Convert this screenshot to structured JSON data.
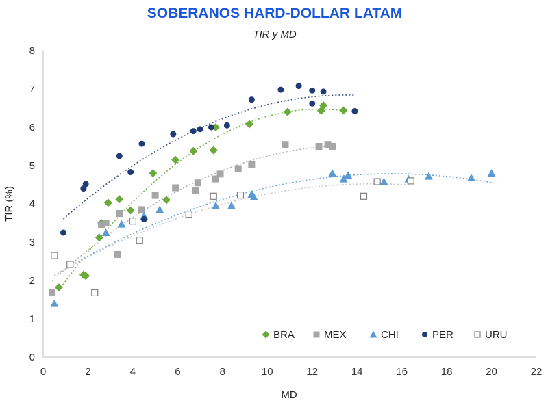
{
  "chart_data": {
    "type": "scatter",
    "title": "SOBERANOS HARD-DOLLAR LATAM",
    "subtitle": "TIR y MD",
    "xlabel": "MD",
    "ylabel": "TIR (%)",
    "xlim": [
      0,
      22
    ],
    "ylim": [
      0,
      8
    ],
    "xticks": [
      "0",
      "2",
      "4",
      "6",
      "8",
      "10",
      "12",
      "14",
      "16",
      "18",
      "20",
      "22"
    ],
    "yticks": [
      "0",
      "1",
      "2",
      "3",
      "4",
      "5",
      "6",
      "7",
      "8"
    ],
    "grid": false,
    "legend_position": "bottom-right",
    "trendlines": "dotted polynomial per series",
    "series": [
      {
        "name": "BRA",
        "marker": "diamond",
        "color": "#6aaa3a",
        "points": [
          [
            0.7,
            1.82
          ],
          [
            1.8,
            2.15
          ],
          [
            1.9,
            2.12
          ],
          [
            2.5,
            3.12
          ],
          [
            2.6,
            3.5
          ],
          [
            2.9,
            4.03
          ],
          [
            3.4,
            4.12
          ],
          [
            3.9,
            3.83
          ],
          [
            4.9,
            4.8
          ],
          [
            5.5,
            4.1
          ],
          [
            5.9,
            5.15
          ],
          [
            6.7,
            5.38
          ],
          [
            7.6,
            5.4
          ],
          [
            7.7,
            6.0
          ],
          [
            9.2,
            6.08
          ],
          [
            10.9,
            6.4
          ],
          [
            12.4,
            6.43
          ],
          [
            12.5,
            6.57
          ],
          [
            13.4,
            6.44
          ]
        ]
      },
      {
        "name": "MEX",
        "marker": "square",
        "color": "#a6a6a6",
        "points": [
          [
            0.4,
            1.68
          ],
          [
            2.6,
            3.45
          ],
          [
            2.8,
            3.5
          ],
          [
            3.3,
            2.68
          ],
          [
            3.4,
            3.75
          ],
          [
            4.4,
            3.85
          ],
          [
            5.0,
            4.22
          ],
          [
            5.9,
            4.42
          ],
          [
            6.8,
            4.35
          ],
          [
            6.9,
            4.55
          ],
          [
            7.7,
            4.65
          ],
          [
            7.9,
            4.78
          ],
          [
            8.7,
            4.92
          ],
          [
            9.3,
            5.03
          ],
          [
            10.8,
            5.55
          ],
          [
            12.3,
            5.5
          ],
          [
            12.7,
            5.55
          ],
          [
            12.9,
            5.5
          ]
        ]
      },
      {
        "name": "CHI",
        "marker": "triangle",
        "color": "#5b9bd5",
        "points": [
          [
            0.5,
            1.4
          ],
          [
            2.8,
            3.25
          ],
          [
            3.5,
            3.47
          ],
          [
            4.5,
            3.68
          ],
          [
            5.2,
            3.85
          ],
          [
            7.7,
            3.95
          ],
          [
            8.4,
            3.95
          ],
          [
            9.3,
            4.25
          ],
          [
            9.4,
            4.18
          ],
          [
            12.9,
            4.8
          ],
          [
            13.4,
            4.65
          ],
          [
            13.6,
            4.75
          ],
          [
            15.2,
            4.58
          ],
          [
            16.3,
            4.65
          ],
          [
            17.2,
            4.72
          ],
          [
            19.1,
            4.68
          ],
          [
            20.0,
            4.8
          ]
        ]
      },
      {
        "name": "PER",
        "marker": "circle",
        "color": "#1f3a75",
        "points": [
          [
            0.9,
            3.25
          ],
          [
            1.8,
            4.4
          ],
          [
            1.9,
            4.52
          ],
          [
            3.4,
            5.25
          ],
          [
            3.9,
            4.83
          ],
          [
            4.4,
            5.57
          ],
          [
            4.5,
            3.6
          ],
          [
            5.8,
            5.82
          ],
          [
            6.7,
            5.9
          ],
          [
            7.0,
            5.95
          ],
          [
            7.5,
            6.0
          ],
          [
            8.2,
            6.05
          ],
          [
            9.3,
            6.72
          ],
          [
            10.6,
            6.98
          ],
          [
            11.4,
            7.08
          ],
          [
            12.0,
            6.62
          ],
          [
            12.0,
            6.96
          ],
          [
            12.5,
            6.93
          ],
          [
            13.9,
            6.42
          ]
        ]
      },
      {
        "name": "URU",
        "marker": "open-square",
        "color": "#7f7f7f",
        "points": [
          [
            0.5,
            2.65
          ],
          [
            1.2,
            2.42
          ],
          [
            2.3,
            1.68
          ],
          [
            4.0,
            3.55
          ],
          [
            4.3,
            3.05
          ],
          [
            6.5,
            3.73
          ],
          [
            7.6,
            4.2
          ],
          [
            8.8,
            4.23
          ],
          [
            14.3,
            4.2
          ],
          [
            14.9,
            4.58
          ],
          [
            16.4,
            4.6
          ]
        ]
      }
    ]
  }
}
